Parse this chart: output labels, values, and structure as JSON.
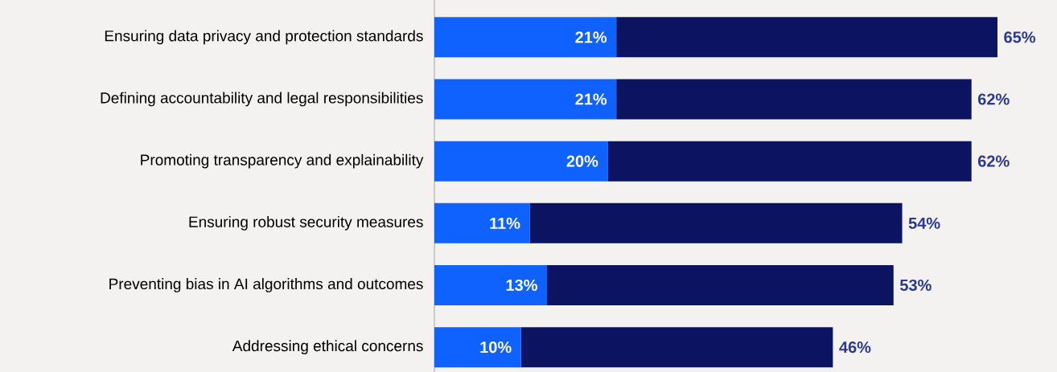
{
  "chart_data": {
    "type": "bar",
    "orientation": "horizontal",
    "stacked": true,
    "categories": [
      "Ensuring data privacy and protection standards",
      "Defining accountability and legal responsibilities",
      "Promoting transparency and explainability",
      "Ensuring robust security measures",
      "Preventing bias in AI algorithms and outcomes",
      "Addressing ethical concerns"
    ],
    "series": [
      {
        "color": "#0f62fe",
        "values": [
          21,
          21,
          20,
          11,
          13,
          10
        ],
        "value_labels": [
          "21%",
          "21%",
          "20%",
          "11%",
          "13%",
          "10%"
        ]
      },
      {
        "color": "#0c1461",
        "values": [
          44,
          41,
          42,
          43,
          40,
          36
        ]
      }
    ],
    "totals": [
      "65%",
      "62%",
      "62%",
      "54%",
      "53%",
      "46%"
    ]
  }
}
